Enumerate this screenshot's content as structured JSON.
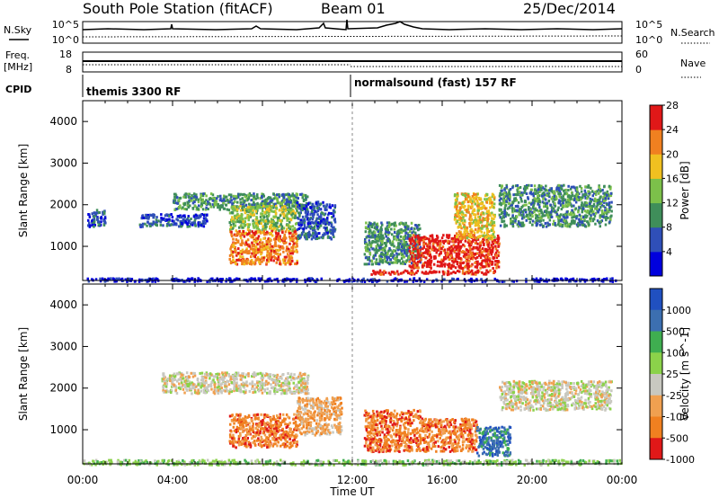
{
  "header": {
    "station": "South Pole Station (fitACF)",
    "beam": "Beam 01",
    "date": "25/Dec/2014"
  },
  "params": {
    "nsky_label": "N.Sky",
    "nsky_ticks": [
      "10^5",
      "10^0"
    ],
    "nsearch_label": "N.Search",
    "nsearch_ticks": [
      "10^5",
      "10^0"
    ],
    "freq_label": "Freq.",
    "freq_unit": "[MHz]",
    "freq_ticks": [
      "18",
      "8"
    ],
    "nave_label": "Nave",
    "nave_ticks": [
      "60",
      "0"
    ],
    "cpid_label": "CPID",
    "cpid_segments": [
      "themis 3300 RF",
      "normalsound (fast) 157 RF"
    ]
  },
  "time_axis": {
    "label": "Time UT",
    "ticks": [
      "00:00",
      "04:00",
      "08:00",
      "12:00",
      "16:00",
      "20:00",
      "00:00"
    ]
  },
  "chart_data": [
    {
      "type": "heatmap",
      "title": "",
      "xlabel": "Time UT",
      "ylabel": "Slant Range [km]",
      "xlim": [
        0,
        24
      ],
      "ylim": [
        180,
        4500
      ],
      "yticks": [
        1000,
        2000,
        3000,
        4000
      ],
      "colorbar_label": "Power [dB]",
      "colorbar_ticks": [
        4,
        8,
        12,
        16,
        20,
        24,
        28
      ],
      "colorbar_colors": [
        "#0000dd",
        "#2f4fb8",
        "#3f8e5a",
        "#7cc04a",
        "#f0c020",
        "#f08020",
        "#e01818"
      ],
      "regions": [
        {
          "x": [
            0.2,
            1.0
          ],
          "y": [
            1500,
            1900
          ],
          "level": 1
        },
        {
          "x": [
            2.5,
            5.5
          ],
          "y": [
            1500,
            1800
          ],
          "level": 1
        },
        {
          "x": [
            4.0,
            10.0
          ],
          "y": [
            1900,
            2300
          ],
          "level": 2
        },
        {
          "x": [
            6.5,
            9.5
          ],
          "y": [
            1400,
            2000
          ],
          "level": 3
        },
        {
          "x": [
            6.5,
            9.5
          ],
          "y": [
            600,
            1400
          ],
          "level": 5
        },
        {
          "x": [
            9.5,
            11.2
          ],
          "y": [
            1200,
            2100
          ],
          "level": 1
        },
        {
          "x": [
            12.5,
            15.0
          ],
          "y": [
            600,
            1600
          ],
          "level": 2
        },
        {
          "x": [
            12.8,
            18.5
          ],
          "y": [
            350,
            450
          ],
          "level": 6
        },
        {
          "x": [
            14.5,
            18.5
          ],
          "y": [
            500,
            1300
          ],
          "level": 6
        },
        {
          "x": [
            16.5,
            18.3
          ],
          "y": [
            1200,
            2300
          ],
          "level": 4
        },
        {
          "x": [
            18.5,
            23.5
          ],
          "y": [
            1500,
            2500
          ],
          "level": 2
        },
        {
          "x": [
            0.0,
            24.0
          ],
          "y": [
            180,
            260
          ],
          "level": 0
        }
      ]
    },
    {
      "type": "heatmap",
      "title": "",
      "xlabel": "Time UT",
      "ylabel": "Slant Range [km]",
      "xlim": [
        0,
        24
      ],
      "ylim": [
        180,
        4500
      ],
      "yticks": [
        1000,
        2000,
        3000,
        4000
      ],
      "colorbar_label": "Velocity [m s^-1]",
      "colorbar_ticks": [
        1000,
        500,
        100,
        25,
        -25,
        -100,
        -500,
        -1000
      ],
      "colorbar_colors": [
        "#2050c0",
        "#3c6fb0",
        "#3fae50",
        "#8bd24a",
        "#c8c8c0",
        "#f0a050",
        "#f08020",
        "#e01818"
      ],
      "regions": [
        {
          "x": [
            3.5,
            10.0
          ],
          "y": [
            1900,
            2400
          ],
          "level": 4
        },
        {
          "x": [
            6.5,
            9.5
          ],
          "y": [
            600,
            1400
          ],
          "level": 6
        },
        {
          "x": [
            9.5,
            11.5
          ],
          "y": [
            900,
            1800
          ],
          "level": 5
        },
        {
          "x": [
            12.5,
            15.0
          ],
          "y": [
            500,
            1500
          ],
          "level": 6
        },
        {
          "x": [
            15.0,
            17.5
          ],
          "y": [
            500,
            1300
          ],
          "level": 6
        },
        {
          "x": [
            17.5,
            19.0
          ],
          "y": [
            400,
            1100
          ],
          "level": 1
        },
        {
          "x": [
            18.5,
            23.5
          ],
          "y": [
            1500,
            2200
          ],
          "level": 4
        },
        {
          "x": [
            0.0,
            24.0
          ],
          "y": [
            180,
            300
          ],
          "level": 3
        }
      ]
    }
  ]
}
